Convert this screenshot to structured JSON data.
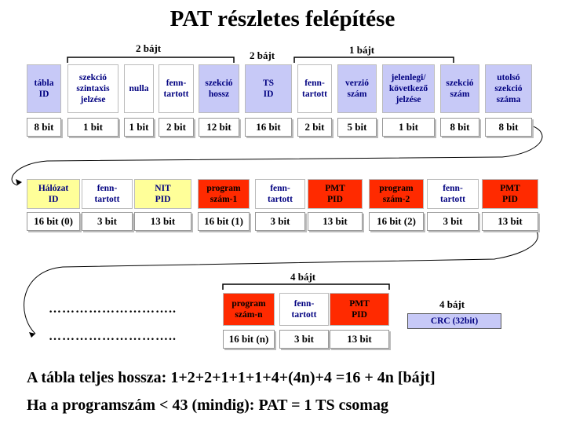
{
  "title": "PAT részletes felépítése",
  "row1": {
    "headers": [
      "tábla\nID",
      "szekció\nszintaxis\njelzése",
      "nulla",
      "fenn-\ntartott",
      "szekció\nhossz",
      "TS\nID",
      "fenn-\ntartott",
      "verzió\nszám",
      "jelenlegi/\nkövetkező\njelzése",
      "szekció\nszám",
      "utolsó\nszekció\nszáma"
    ],
    "values": [
      "8 bit",
      "1 bit",
      "1 bit",
      "2 bit",
      "12 bit",
      "16 bit",
      "2 bit",
      "5 bit",
      "1 bit",
      "8 bit",
      "8 bit"
    ],
    "braces": [
      "2 bájt",
      "2 bájt",
      "1 bájt"
    ]
  },
  "row2": {
    "headers": [
      "Hálózat\nID",
      "fenn-\ntartott",
      "NIT\nPID",
      "program\nszám-1",
      "fenn-\ntartott",
      "PMT\nPID",
      "program\nszám-2",
      "fenn-\ntartott",
      "PMT\nPID"
    ],
    "values": [
      "16 bit (0)",
      "3 bit",
      "13 bit",
      "16 bit (1)",
      "3 bit",
      "13 bit",
      "16 bit (2)",
      "3 bit",
      "13 bit"
    ]
  },
  "row3": {
    "brace": "4 bájt",
    "headers": [
      "program\nszám-n",
      "fenn-\ntartott",
      "PMT\nPID"
    ],
    "values": [
      "16 bit (n)",
      "3 bit",
      "13 bit"
    ],
    "dots": "………………………..",
    "crc_label": "4 bájt",
    "crc": "CRC (32bit)"
  },
  "summary": {
    "line1": "A tábla teljes hossza: 1+2+2+1+1+1+4+(4n)+4 =16 + 4n [bájt]",
    "line2": "Ha a programszám < 43 (mindig): PAT = 1 TS csomag"
  }
}
